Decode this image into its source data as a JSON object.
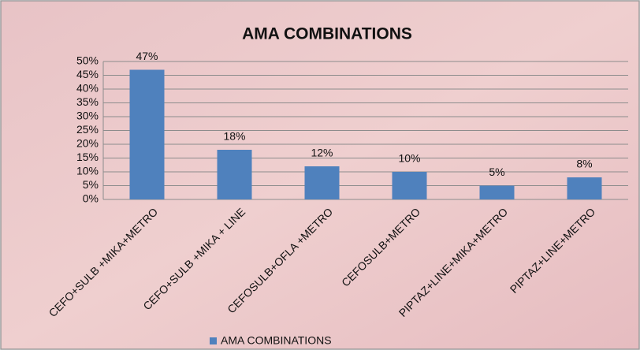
{
  "chart_data": {
    "type": "bar",
    "title": "AMA COMBINATIONS",
    "categories": [
      "CEFO+SULB +MIKA+METRO",
      "CEFO+SULB +MIKA + LINE",
      "CEFOSULB+OFLA +METRO",
      "CEFOSULB+METRO",
      "PIPTAZ+LINE+MIKA+METRO",
      "PIPTAZ+LINE+METRO"
    ],
    "series": [
      {
        "name": "AMA COMBINATIONS",
        "color": "#4f81bd",
        "values": [
          47,
          18,
          12,
          10,
          5,
          8
        ],
        "value_labels": [
          "47%",
          "18%",
          "12%",
          "10%",
          "5%",
          "8%"
        ]
      }
    ],
    "ylim": [
      0,
      50
    ],
    "yticks": [
      {
        "value": 0,
        "label": "0%"
      },
      {
        "value": 5,
        "label": "5%"
      },
      {
        "value": 10,
        "label": "10%"
      },
      {
        "value": 15,
        "label": "15%"
      },
      {
        "value": 20,
        "label": "20%"
      },
      {
        "value": 25,
        "label": "25%"
      },
      {
        "value": 30,
        "label": "30%"
      },
      {
        "value": 35,
        "label": "35%"
      },
      {
        "value": 40,
        "label": "40%"
      },
      {
        "value": 45,
        "label": "45%"
      },
      {
        "value": 50,
        "label": "50%"
      }
    ],
    "grid": true,
    "legend": "bottom"
  }
}
